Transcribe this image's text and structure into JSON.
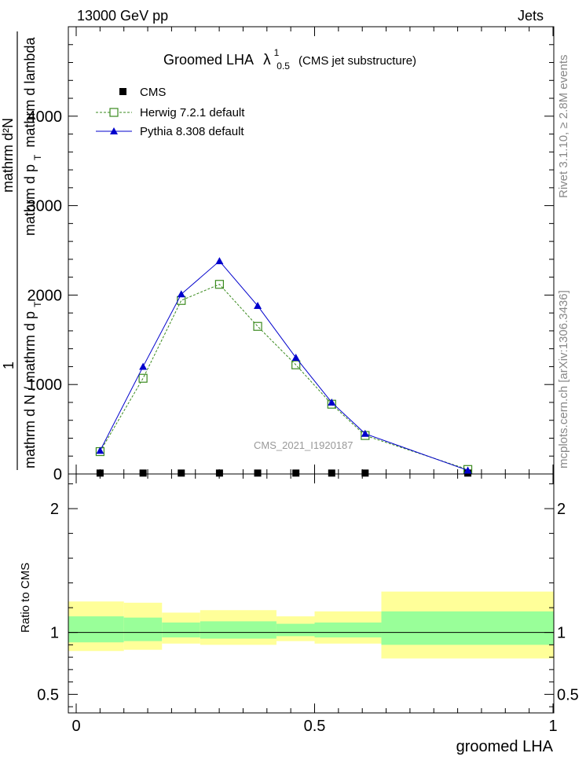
{
  "header": {
    "left": "13000 GeV pp",
    "right": "Jets"
  },
  "side_text": {
    "rivet": "Rivet 3.1.10, ≥ 2.8M events",
    "mcplots": "mcplots.cern.ch [arXiv:1306.3436]"
  },
  "chart_data": [
    {
      "type": "line",
      "title_main": "Groomed LHA",
      "title_symbol": "λ",
      "title_superscript": "1",
      "title_subscript": "0.5",
      "title_suffix": "(CMS jet substructure)",
      "watermark": "CMS_2021_I1920187",
      "ylabel_parts": {
        "numerator": "1",
        "denominator_top": "mathrm d p",
        "denominator_top_sub": "T",
        "denominator_top_rest": "mathrm d lambda",
        "numerator_overlay": "mathrm d²N",
        "denominator": "mathrm d N / mathrm d p",
        "denominator_sub": "T"
      },
      "xlim": [
        0,
        1
      ],
      "ylim": [
        0,
        5000
      ],
      "y_ticks": [
        0,
        1000,
        2000,
        3000,
        4000
      ],
      "y_tick_labels": [
        "0",
        "1000",
        "2000",
        "3000",
        "4000"
      ],
      "legend_position": "top-left",
      "series": [
        {
          "name": "CMS",
          "marker": "square",
          "color": "#000000",
          "x": [
            0.05,
            0.14,
            0.22,
            0.3,
            0.38,
            0.46,
            0.535,
            0.605,
            0.82
          ],
          "y": [
            10,
            10,
            10,
            10,
            10,
            10,
            10,
            10,
            10
          ]
        },
        {
          "name": "Herwig 7.2.1 default",
          "marker": "open-square",
          "color": "#3a8a1e",
          "x": [
            0.05,
            0.14,
            0.22,
            0.3,
            0.38,
            0.46,
            0.535,
            0.605,
            0.82
          ],
          "y": [
            250,
            1070,
            1940,
            2120,
            1650,
            1220,
            780,
            430,
            50
          ]
        },
        {
          "name": "Pythia 8.308 default",
          "marker": "triangle",
          "color": "#0000cc",
          "x": [
            0.05,
            0.14,
            0.22,
            0.3,
            0.38,
            0.46,
            0.535,
            0.605,
            0.82
          ],
          "y": [
            260,
            1200,
            2010,
            2380,
            1880,
            1300,
            800,
            450,
            40
          ]
        }
      ]
    },
    {
      "type": "area",
      "ylabel": "Ratio to CMS",
      "xlabel": "groomed LHA",
      "xlim": [
        0,
        1
      ],
      "ylim": [
        0.35,
        2.28
      ],
      "x_ticks": [
        0,
        0.5,
        1
      ],
      "x_tick_labels": [
        "0",
        "0.5",
        "1"
      ],
      "y_ticks": [
        0.5,
        1,
        2
      ],
      "y_tick_labels": [
        "0.5",
        "1",
        "2"
      ],
      "bands": [
        {
          "x0": 0.0,
          "x1": 0.1,
          "inner": [
            0.92,
            1.13
          ],
          "outer": [
            0.85,
            1.25
          ]
        },
        {
          "x0": 0.1,
          "x1": 0.18,
          "inner": [
            0.93,
            1.12
          ],
          "outer": [
            0.86,
            1.24
          ]
        },
        {
          "x0": 0.18,
          "x1": 0.26,
          "inner": [
            0.96,
            1.08
          ],
          "outer": [
            0.91,
            1.16
          ]
        },
        {
          "x0": 0.26,
          "x1": 0.42,
          "inner": [
            0.95,
            1.09
          ],
          "outer": [
            0.9,
            1.18
          ]
        },
        {
          "x0": 0.42,
          "x1": 0.5,
          "inner": [
            0.97,
            1.07
          ],
          "outer": [
            0.93,
            1.13
          ]
        },
        {
          "x0": 0.5,
          "x1": 0.64,
          "inner": [
            0.96,
            1.08
          ],
          "outer": [
            0.91,
            1.17
          ]
        },
        {
          "x0": 0.64,
          "x1": 1.0,
          "inner": [
            0.9,
            1.17
          ],
          "outer": [
            0.79,
            1.33
          ]
        }
      ],
      "band_colors": {
        "inner": "#99ff99",
        "outer": "#ffff99"
      }
    }
  ]
}
